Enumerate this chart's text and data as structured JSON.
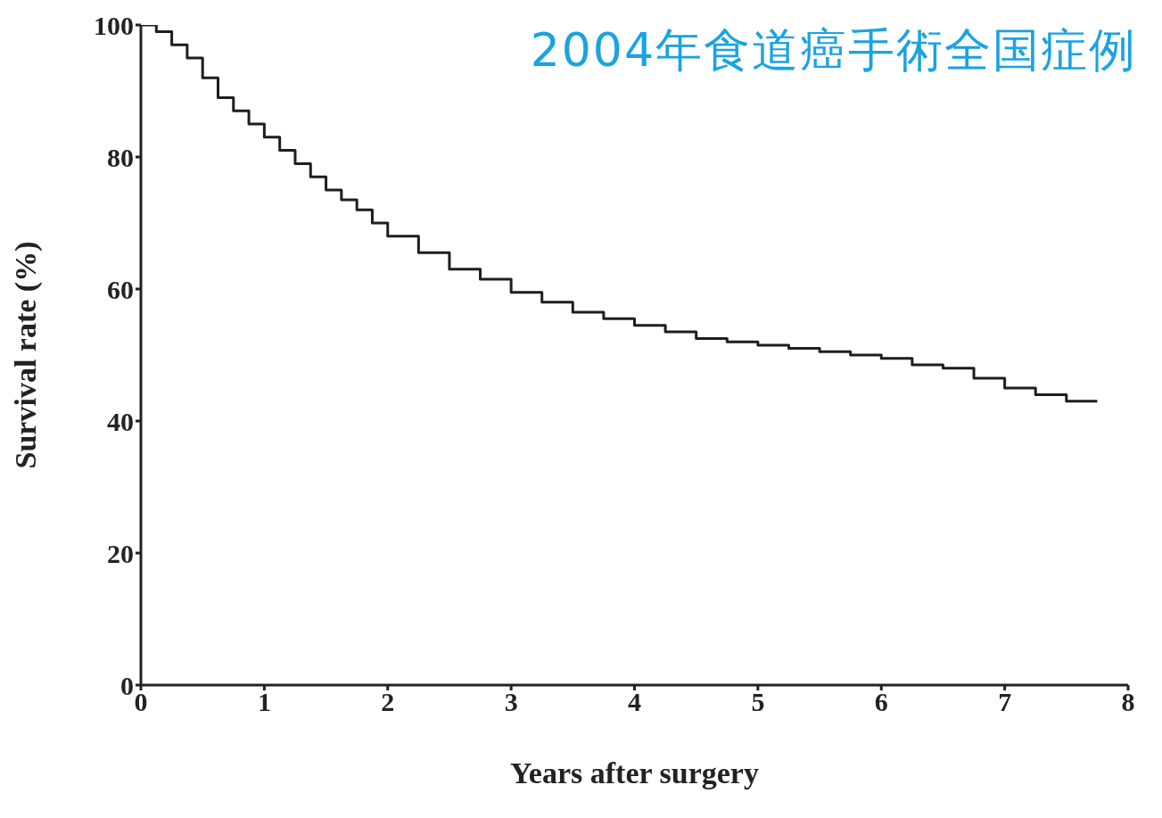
{
  "chart_data": {
    "type": "step",
    "title": "2004年食道癌手術全国症例",
    "xlabel": "Years after surgery",
    "ylabel": "Survival rate (%)",
    "x": [
      0,
      0.125,
      0.25,
      0.375,
      0.5,
      0.625,
      0.75,
      0.875,
      1,
      1.125,
      1.25,
      1.375,
      1.5,
      1.625,
      1.75,
      1.875,
      2,
      2.25,
      2.5,
      2.75,
      3,
      3.25,
      3.5,
      3.75,
      4,
      4.25,
      4.5,
      4.75,
      5,
      5.25,
      5.5,
      5.75,
      6,
      6.25,
      6.5,
      6.75,
      7,
      7.25,
      7.5,
      7.75
    ],
    "values": [
      100,
      99,
      97,
      95,
      92,
      89,
      87,
      85,
      83,
      81,
      79,
      77,
      75,
      73.5,
      72,
      70,
      68,
      65.5,
      63,
      61.5,
      59.5,
      58,
      56.5,
      55.5,
      54.5,
      53.5,
      52.5,
      52,
      51.5,
      51,
      50.5,
      50,
      49.5,
      48.5,
      48,
      46.5,
      45,
      44,
      43,
      43
    ],
    "color": "#1e1e1e",
    "xlim": [
      0,
      8
    ],
    "xticks": [
      0,
      1,
      2,
      3,
      4,
      5,
      6,
      7,
      8
    ],
    "ylim": [
      0,
      100
    ],
    "yticks": [
      0,
      20,
      40,
      60,
      80,
      100
    ]
  }
}
